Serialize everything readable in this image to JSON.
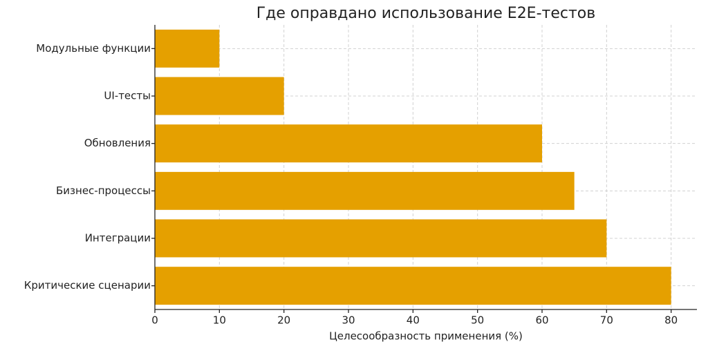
{
  "chart_data": {
    "type": "barh",
    "title": "Где оправдано использование E2E-тестов",
    "x_label": "Целесообразность применения (%)",
    "categories": [
      "Модульные функции",
      "UI-тесты",
      "Обновления",
      "Бизнес-процессы",
      "Интеграции",
      "Критические сценарии"
    ],
    "values": [
      10,
      20,
      60,
      65,
      70,
      80
    ],
    "color": "#e5a000",
    "xlim": [
      0,
      84
    ],
    "xticks": [
      0,
      10,
      20,
      30,
      40,
      50,
      60,
      70,
      80
    ],
    "grid": true
  }
}
